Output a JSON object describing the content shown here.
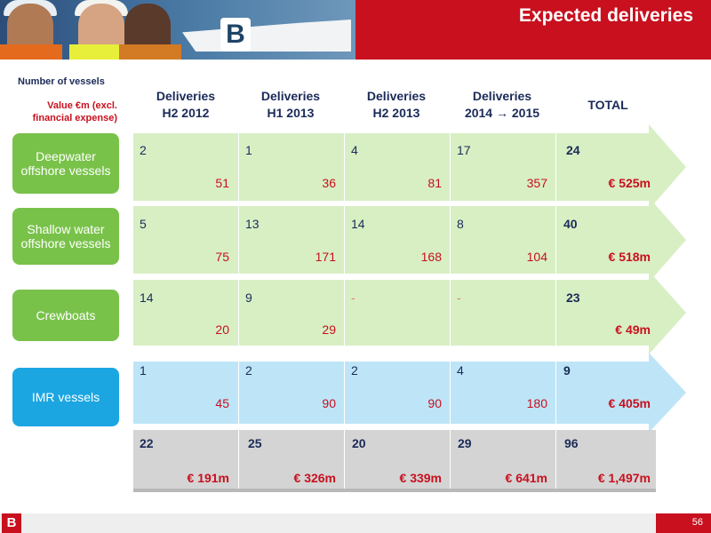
{
  "header": {
    "title": "Expected deliveries",
    "logo_glyph": "B"
  },
  "legend": {
    "count": "Number of vessels",
    "value": "Value €m (excl. financial expense)"
  },
  "columns": [
    {
      "line1": "Deliveries",
      "line2": "H2 2012"
    },
    {
      "line1": "Deliveries",
      "line2": "H1 2013"
    },
    {
      "line1": "Deliveries",
      "line2": "H2 2013"
    },
    {
      "line1": "Deliveries",
      "line2": "2014 → 2015"
    },
    {
      "line1": "TOTAL",
      "line2": ""
    }
  ],
  "rows": [
    {
      "label": "Deepwater offshore vessels",
      "color": "#79c24a",
      "counts": [
        "2",
        "1",
        "4",
        "17",
        "24"
      ],
      "values": [
        "51",
        "36",
        "81",
        "357",
        "€ 525m"
      ]
    },
    {
      "label": "Shallow water offshore vessels",
      "color": "#79c24a",
      "counts": [
        "5",
        "13",
        "14",
        "8",
        "40"
      ],
      "values": [
        "75",
        "171",
        "168",
        "104",
        "€ 518m"
      ]
    },
    {
      "label": "Crewboats",
      "color": "#79c24a",
      "counts": [
        "14",
        "9",
        "-",
        "-",
        "23"
      ],
      "values": [
        "20",
        "29",
        "",
        "",
        "€ 49m"
      ]
    },
    {
      "label": "IMR vessels",
      "color": "#1ba6e2",
      "counts": [
        "1",
        "2",
        "2",
        "4",
        "9"
      ],
      "values": [
        "45",
        "90",
        "90",
        "180",
        "€ 405m"
      ]
    }
  ],
  "totals": {
    "counts": [
      "22",
      "25",
      "20",
      "29",
      "96"
    ],
    "values": [
      "€ 191m",
      "€ 326m",
      "€ 339m",
      "€ 641m",
      "€ 1,497m"
    ]
  },
  "footer": {
    "logo_glyph": "B",
    "page_number": "56"
  },
  "colors": {
    "brand_red": "#c8101e",
    "navy": "#1b2b58",
    "green": "#79c24a",
    "blue": "#1ba6e2"
  }
}
